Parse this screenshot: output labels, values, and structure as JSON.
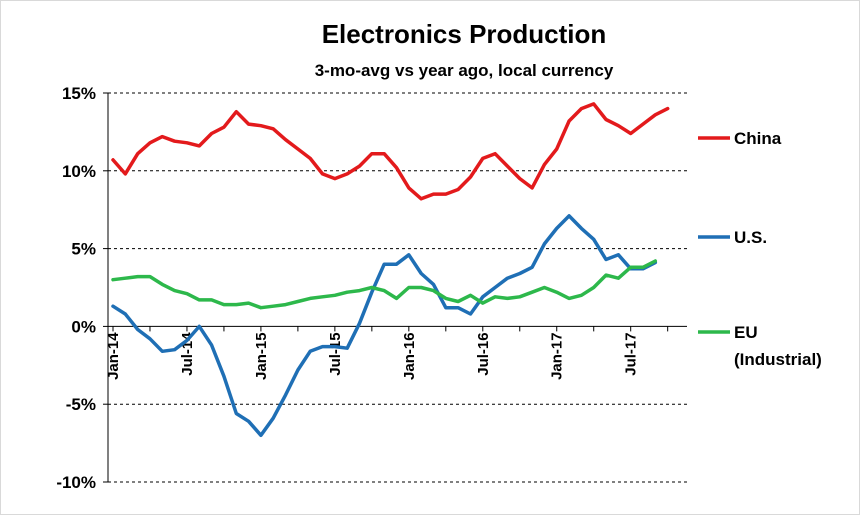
{
  "chart_data": {
    "type": "line",
    "title": "Electronics Production",
    "subtitle": "3-mo-avg vs year ago, local currency",
    "ylim": [
      -10,
      15
    ],
    "yticks": [
      15,
      10,
      5,
      0,
      -5,
      -10
    ],
    "ytick_labels": [
      "15%",
      "10%",
      "5%",
      "0%",
      "-5%",
      "-10%"
    ],
    "xticks": [
      {
        "index": 0,
        "label": "Jan-14"
      },
      {
        "index": 6,
        "label": "Jul-14"
      },
      {
        "index": 12,
        "label": "Jan-15"
      },
      {
        "index": 18,
        "label": "Jul-15"
      },
      {
        "index": 24,
        "label": "Jan-16"
      },
      {
        "index": 30,
        "label": "Jul-16"
      },
      {
        "index": 36,
        "label": "Jan-17"
      },
      {
        "index": 42,
        "label": "Jul-17"
      }
    ],
    "x_range": [
      0,
      46
    ],
    "grid": "horizontal dashed",
    "legend_position": "right",
    "series": [
      {
        "name": "China",
        "color": "#e31a1c",
        "label_lines": [
          "China"
        ],
        "values": [
          10.7,
          9.8,
          11.1,
          11.8,
          12.2,
          11.9,
          11.8,
          11.6,
          12.4,
          12.8,
          13.8,
          13.0,
          12.9,
          12.7,
          12.0,
          11.4,
          10.8,
          9.8,
          9.5,
          9.8,
          10.3,
          11.1,
          11.1,
          10.2,
          8.9,
          8.2,
          8.5,
          8.5,
          8.8,
          9.6,
          10.8,
          11.1,
          10.3,
          9.5,
          8.9,
          10.4,
          11.4,
          13.2,
          14.0,
          14.3,
          13.3,
          12.9,
          12.4,
          13.0,
          13.6,
          14.0
        ]
      },
      {
        "name": "U.S.",
        "color": "#1f6fb5",
        "label_lines": [
          "U.S."
        ],
        "values": [
          1.3,
          0.8,
          -0.2,
          -0.8,
          -1.6,
          -1.5,
          -0.9,
          0.0,
          -1.2,
          -3.2,
          -5.6,
          -6.1,
          -7.0,
          -5.9,
          -4.4,
          -2.8,
          -1.6,
          -1.3,
          -1.3,
          -1.4,
          0.2,
          2.2,
          4.0,
          4.0,
          4.6,
          3.4,
          2.7,
          1.2,
          1.2,
          0.8,
          1.9,
          2.5,
          3.1,
          3.4,
          3.8,
          5.3,
          6.3,
          7.1,
          6.3,
          5.6,
          4.3,
          4.6,
          3.7,
          3.7,
          4.1
        ]
      },
      {
        "name": "EU (Industrial)",
        "color": "#2db84b",
        "label_lines": [
          "EU",
          "(Industrial)"
        ],
        "values": [
          3.0,
          3.1,
          3.2,
          3.2,
          2.7,
          2.3,
          2.1,
          1.7,
          1.7,
          1.4,
          1.4,
          1.5,
          1.2,
          1.3,
          1.4,
          1.6,
          1.8,
          1.9,
          2.0,
          2.2,
          2.3,
          2.5,
          2.3,
          1.8,
          2.5,
          2.5,
          2.3,
          1.8,
          1.6,
          2.0,
          1.5,
          1.9,
          1.8,
          1.9,
          2.2,
          2.5,
          2.2,
          1.8,
          2.0,
          2.5,
          3.3,
          3.1,
          3.8,
          3.8,
          4.2
        ]
      }
    ]
  }
}
